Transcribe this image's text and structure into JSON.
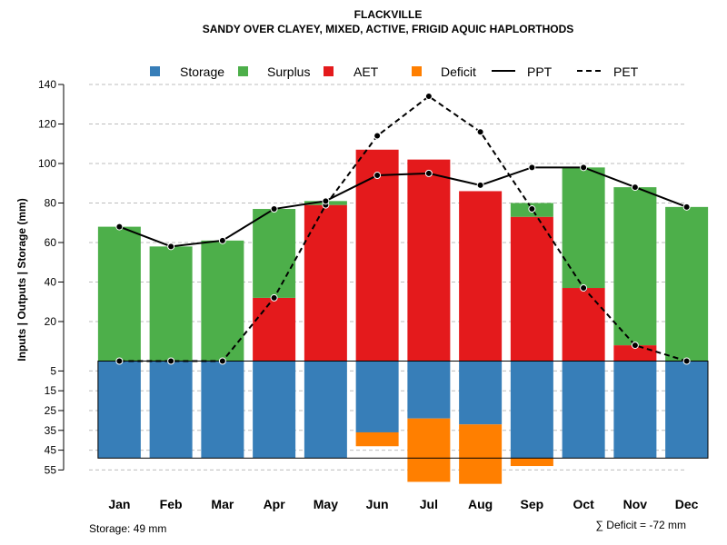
{
  "chart_data": {
    "type": "bar",
    "title": "FLACKVILLE",
    "subtitle": "SANDY OVER CLAYEY, MIXED, ACTIVE, FRIGID AQUIC HAPLORTHODS",
    "ylabel": "Inputs | Outputs | Storage    (mm)",
    "categories": [
      "Jan",
      "Feb",
      "Mar",
      "Apr",
      "May",
      "Jun",
      "Jul",
      "Aug",
      "Sep",
      "Oct",
      "Nov",
      "Dec"
    ],
    "ylim_top": [
      0,
      140
    ],
    "yticks_top": [
      "140",
      "120",
      "100",
      "80",
      "60",
      "40",
      "20"
    ],
    "ylim_bottom": [
      0,
      55
    ],
    "yticks_bottom": [
      "5",
      "15",
      "25",
      "35",
      "45",
      "55"
    ],
    "legend": {
      "storage": "Storage",
      "surplus": "Surplus",
      "aet": "AET",
      "deficit": "Deficit",
      "ppt": "PPT",
      "pet": "PET"
    },
    "colors": {
      "storage": "#377EB8",
      "surplus": "#4DAF4A",
      "aet": "#E41A1C",
      "deficit": "#FF7F00"
    },
    "series": [
      {
        "name": "AET",
        "values": [
          0,
          0,
          0,
          32,
          79,
          107,
          102,
          86,
          73,
          37,
          8,
          0
        ]
      },
      {
        "name": "Surplus",
        "values": [
          68,
          58,
          61,
          45,
          2,
          0,
          0,
          0,
          7,
          61,
          80,
          78
        ]
      },
      {
        "name": "Storage",
        "values": [
          49,
          49,
          49,
          49,
          49,
          36,
          29,
          32,
          49,
          49,
          49,
          49
        ]
      },
      {
        "name": "Deficit",
        "values": [
          0,
          0,
          0,
          0,
          0,
          7,
          32,
          30,
          4,
          0,
          0,
          0
        ]
      },
      {
        "name": "PPT",
        "values": [
          68,
          58,
          61,
          77,
          81,
          94,
          95,
          89,
          98,
          98,
          88,
          78
        ]
      },
      {
        "name": "PET",
        "values": [
          0,
          0,
          0,
          32,
          79,
          114,
          134,
          116,
          77,
          37,
          8,
          0
        ]
      }
    ],
    "storage_capacity": 49,
    "footer_left": "Storage: 49 mm",
    "footer_right": "∑ Deficit = -72 mm"
  }
}
